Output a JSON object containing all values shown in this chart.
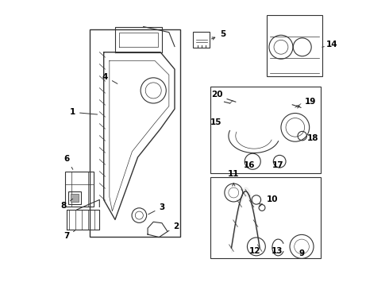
{
  "bg_color": "#ffffff",
  "line_color": "#333333",
  "label_color": "#000000"
}
